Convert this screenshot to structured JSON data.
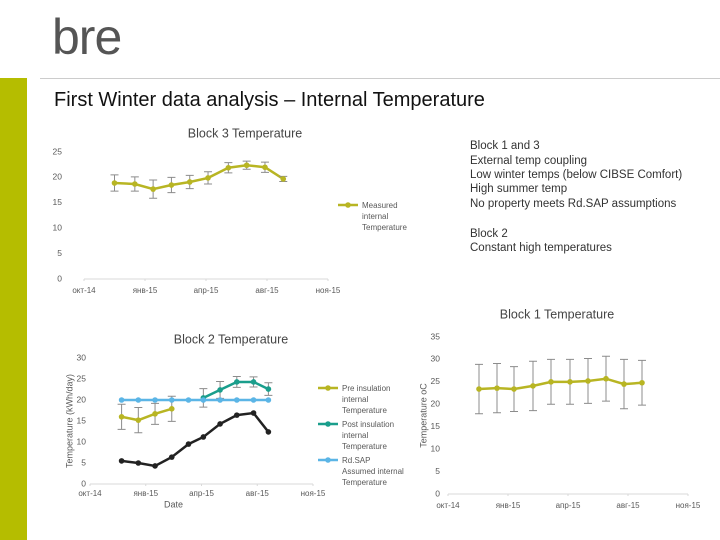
{
  "logo": "bre",
  "title": "First Winter data analysis – Internal Temperature",
  "notes": [
    "Block 1 and 3",
    "External temp coupling",
    "Low winter temps (below CIBSE Comfort)",
    "High summer temp",
    "No property meets Rd.SAP assumptions",
    "Block 2",
    "Constant high temperatures"
  ],
  "chart_data": [
    {
      "type": "line",
      "title": "Block 3 Temperature",
      "legend": "right",
      "x": [
        1.5,
        2.5,
        3.4,
        4.3,
        5.2,
        6.1,
        7.1,
        8.0,
        8.9,
        9.8
      ],
      "xlim": [
        0,
        12
      ],
      "xticks": [
        {
          "value": 0,
          "label": "окт-14"
        },
        {
          "value": 3,
          "label": "янв-15"
        },
        {
          "value": 6,
          "label": "апр-15"
        },
        {
          "value": 9,
          "label": "авг-15"
        },
        {
          "value": 12,
          "label": "ноя-15"
        }
      ],
      "ylim": [
        0,
        25
      ],
      "yticks": [
        0,
        5,
        10,
        15,
        20,
        25
      ],
      "series": [
        {
          "name": "Measured internal Temperature",
          "color": "#b8b523",
          "values": [
            18.9,
            18.7,
            17.7,
            18.5,
            19.1,
            19.9,
            21.9,
            22.4,
            22.0,
            19.7
          ],
          "errors": [
            1.6,
            1.4,
            1.8,
            1.5,
            1.3,
            1.2,
            1.0,
            0.8,
            1.0,
            0.5
          ]
        }
      ]
    },
    {
      "type": "line",
      "title": "Block 2 Temperature",
      "legend": "right",
      "xlabel": "Date",
      "ylabel": "Temperature (kWh/day)",
      "x": [
        1.7,
        2.6,
        3.5,
        4.4,
        5.3,
        6.1,
        7.0,
        7.9,
        8.8,
        9.6
      ],
      "xlim": [
        0,
        12
      ],
      "xticks": [
        {
          "value": 0,
          "label": "окт-14"
        },
        {
          "value": 3,
          "label": "янв-15"
        },
        {
          "value": 6,
          "label": "апр-15"
        },
        {
          "value": 9,
          "label": "авг-15"
        },
        {
          "value": 12,
          "label": "ноя-15"
        }
      ],
      "ylim": [
        0,
        30
      ],
      "yticks": [
        0,
        5,
        10,
        15,
        20,
        25,
        30
      ],
      "series": [
        {
          "color": "#222222",
          "values": [
            5.5,
            5.0,
            4.3,
            6.4,
            9.5,
            11.2,
            14.3,
            16.4,
            16.9,
            12.4
          ]
        },
        {
          "name": "Pre insulation internal Temperature",
          "color": "#b8b523",
          "values": [
            16.0,
            15.2,
            16.7,
            17.9,
            null,
            null,
            null,
            null,
            null,
            null
          ],
          "errors": [
            3.0,
            3.0,
            2.5,
            3.0,
            null,
            null,
            null,
            null,
            null,
            null
          ]
        },
        {
          "name": "Post insulation internal Temperature",
          "color": "#1a9e8c",
          "values": [
            null,
            null,
            null,
            null,
            null,
            20.5,
            22.4,
            24.3,
            24.3,
            22.6
          ],
          "errors": [
            null,
            null,
            null,
            null,
            null,
            2.2,
            2.0,
            1.3,
            1.2,
            1.5
          ]
        },
        {
          "name": "Rd.SAP Assumed internal Temperature",
          "color": "#5bb5e6",
          "values": [
            20,
            20,
            20,
            20,
            20,
            20,
            20,
            20,
            20,
            20
          ]
        }
      ]
    },
    {
      "type": "line",
      "title": "Block 1 Temperature",
      "ylabel": "Temperature oC",
      "x": [
        1.55,
        2.45,
        3.3,
        4.25,
        5.15,
        6.1,
        7.0,
        7.9,
        8.8,
        9.7
      ],
      "xlim": [
        0,
        12
      ],
      "xticks": [
        {
          "value": 0,
          "label": "окт-14"
        },
        {
          "value": 3,
          "label": "янв-15"
        },
        {
          "value": 6,
          "label": "апр-15"
        },
        {
          "value": 9,
          "label": "авг-15"
        },
        {
          "value": 12,
          "label": "ноя-15"
        }
      ],
      "ylim": [
        0,
        35
      ],
      "yticks": [
        0,
        5,
        10,
        15,
        20,
        25,
        30,
        35
      ],
      "series": [
        {
          "color": "#b8b523",
          "values": [
            23.4,
            23.6,
            23.4,
            24.1,
            25.0,
            25.0,
            25.2,
            25.7,
            24.5,
            24.8
          ],
          "errors": [
            5.5,
            5.5,
            5.0,
            5.5,
            5.0,
            5.0,
            5.0,
            5.0,
            5.5,
            5.0
          ]
        }
      ]
    }
  ]
}
